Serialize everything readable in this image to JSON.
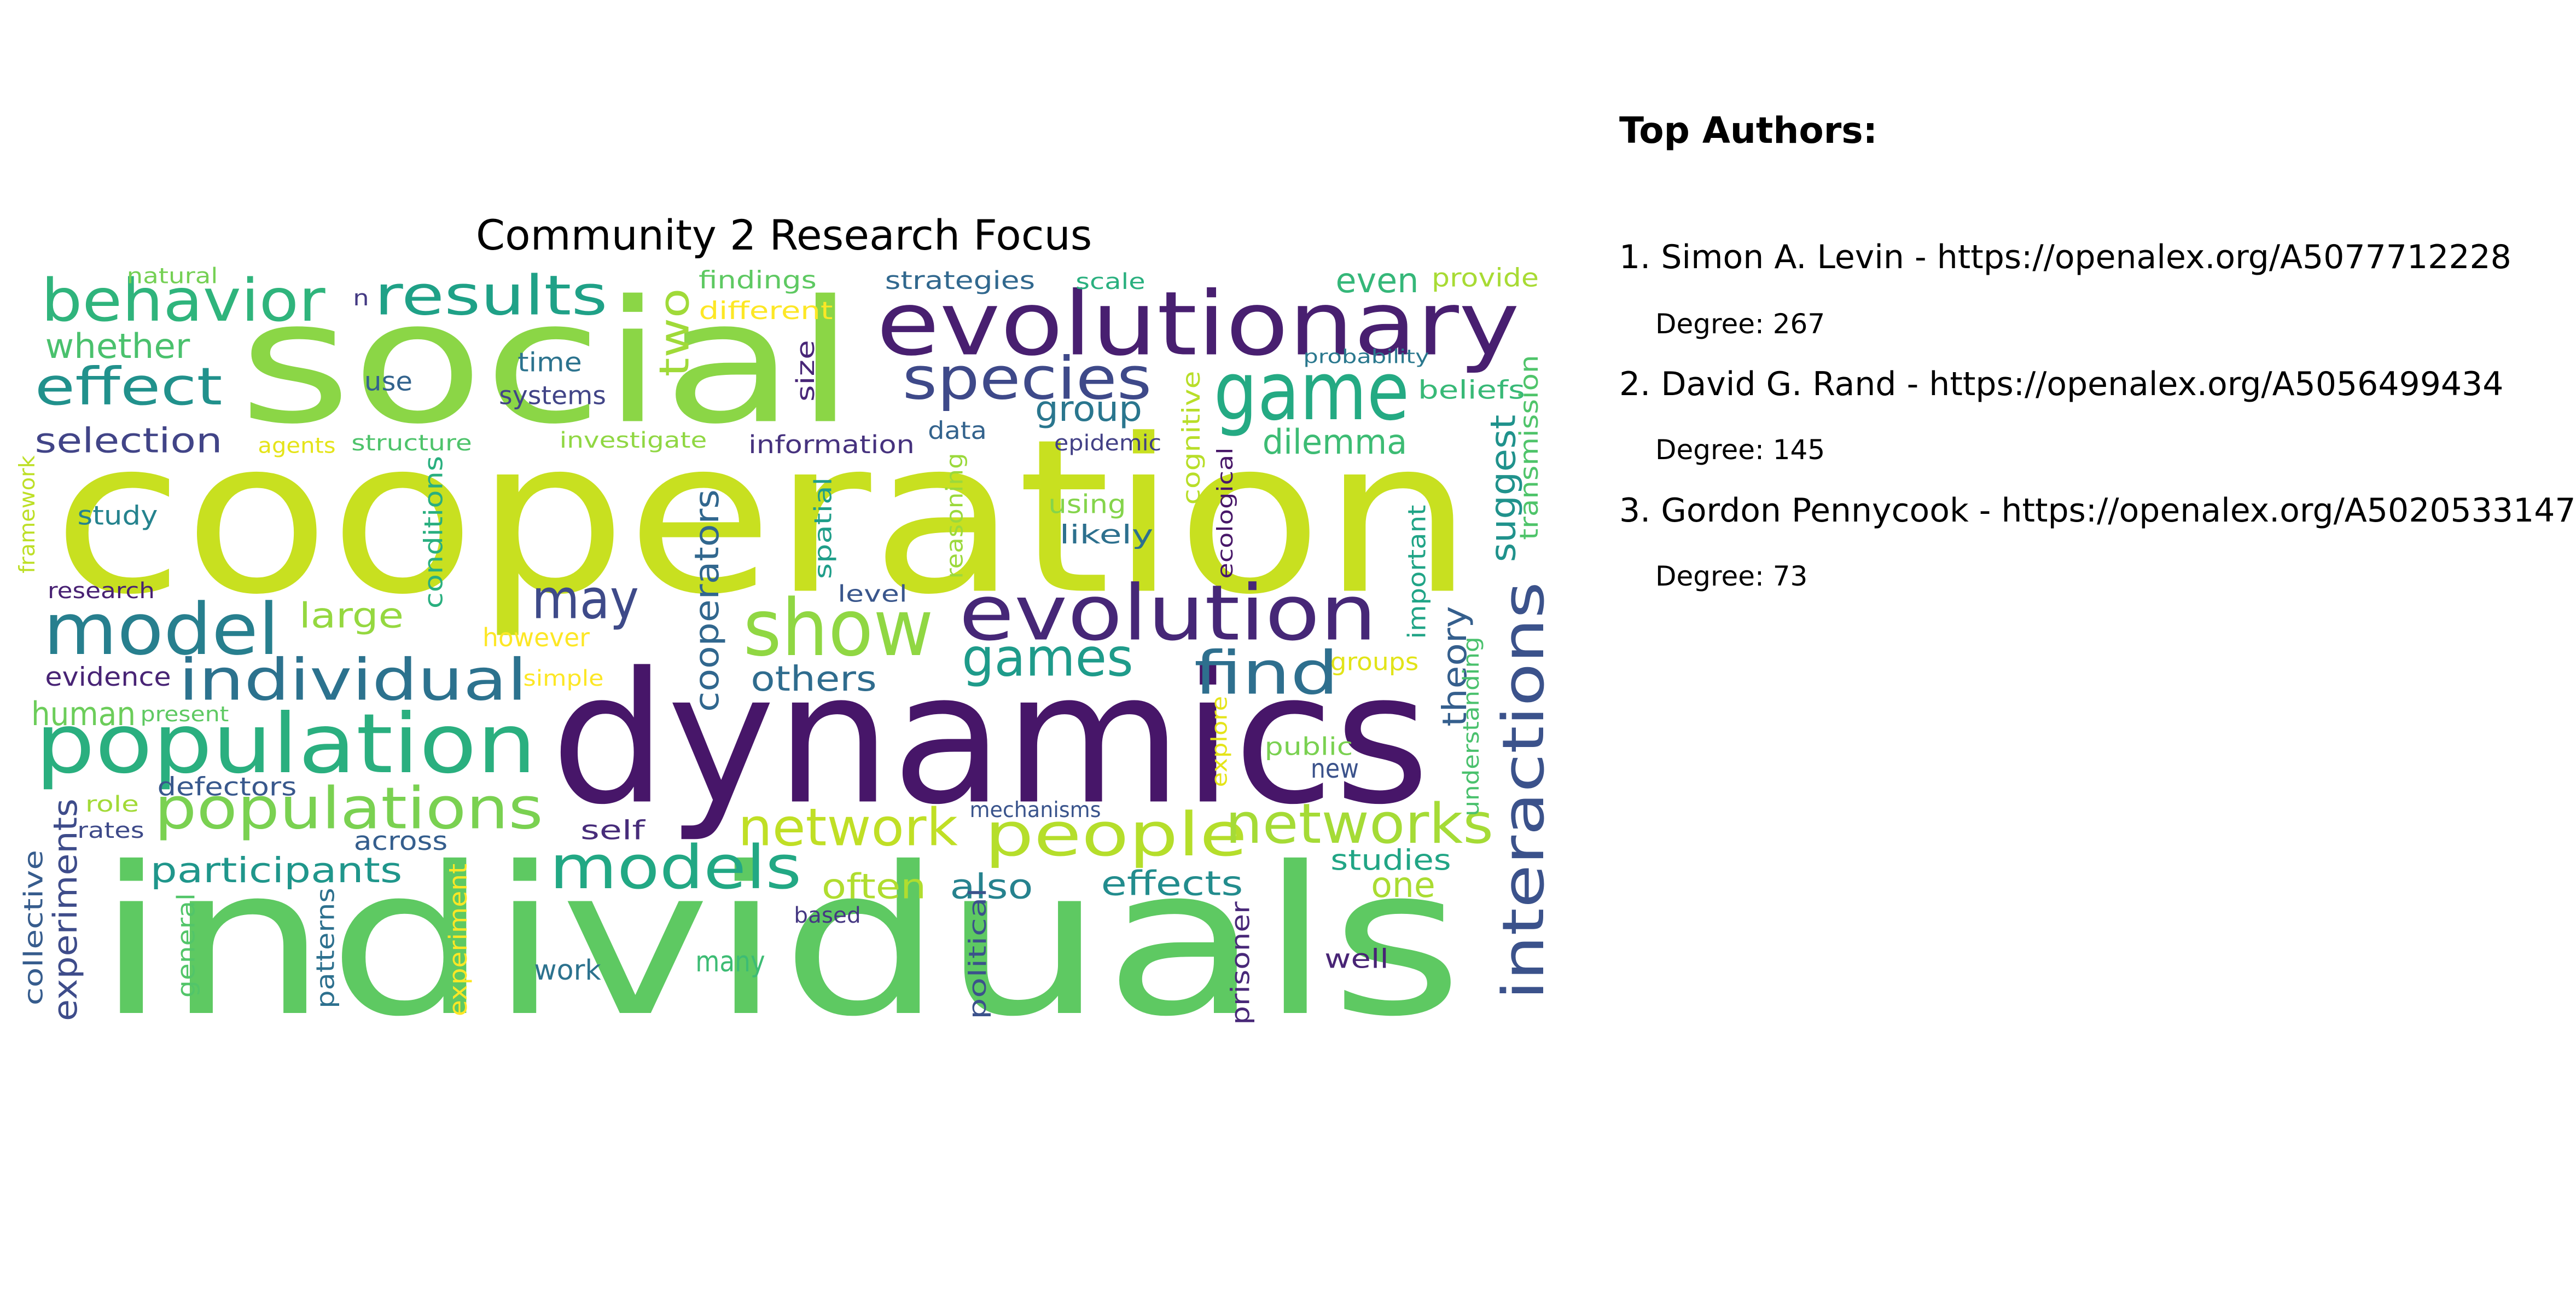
{
  "wordcloud": {
    "title": "Community 2 Research Focus",
    "words": [
      {
        "text": "cooperation",
        "color": "#c8e020"
      },
      {
        "text": "dynamics",
        "color": "#471669"
      },
      {
        "text": "individuals",
        "color": "#5ec962"
      },
      {
        "text": "social",
        "color": "#8bd646"
      },
      {
        "text": "evolutionary",
        "color": "#481f70"
      },
      {
        "text": "game",
        "color": "#24aa83"
      },
      {
        "text": "evolution",
        "color": "#462777"
      },
      {
        "text": "show",
        "color": "#90d743"
      },
      {
        "text": "population",
        "color": "#2aaf7f"
      },
      {
        "text": "model",
        "color": "#277f8e"
      },
      {
        "text": "individual",
        "color": "#2c728e"
      },
      {
        "text": "populations",
        "color": "#7ad151"
      },
      {
        "text": "interactions",
        "color": "#3b528b"
      },
      {
        "text": "behavior",
        "color": "#2fb47c"
      },
      {
        "text": "results",
        "color": "#1fa187"
      },
      {
        "text": "species",
        "color": "#3e4989"
      },
      {
        "text": "people",
        "color": "#b5de2b"
      },
      {
        "text": "networks",
        "color": "#a5db36"
      },
      {
        "text": "network",
        "color": "#c0df25"
      },
      {
        "text": "models",
        "color": "#22a884"
      },
      {
        "text": "find",
        "color": "#2e6f8e"
      },
      {
        "text": "games",
        "color": "#1e9b8a"
      },
      {
        "text": "effect",
        "color": "#21918c"
      },
      {
        "text": "may",
        "color": "#3e4a89"
      },
      {
        "text": "two",
        "color": "#a0da39"
      },
      {
        "text": "even",
        "color": "#35b779"
      },
      {
        "text": "whether",
        "color": "#4ac16d"
      },
      {
        "text": "selection",
        "color": "#414487"
      },
      {
        "text": "large",
        "color": "#95d840"
      },
      {
        "text": "participants",
        "color": "#1f968b"
      },
      {
        "text": "suggest",
        "color": "#20928c"
      },
      {
        "text": "cooperators",
        "color": "#31678e"
      },
      {
        "text": "dilemma",
        "color": "#3dbc74"
      },
      {
        "text": "group",
        "color": "#2a768e"
      },
      {
        "text": "often",
        "color": "#b0dd2f"
      },
      {
        "text": "also",
        "color": "#26828e"
      },
      {
        "text": "effects",
        "color": "#228c8d"
      },
      {
        "text": "theory",
        "color": "#355f8d"
      },
      {
        "text": "others",
        "color": "#2f6c8e"
      },
      {
        "text": "human",
        "color": "#6ccd5a"
      },
      {
        "text": "one",
        "color": "#aadc32"
      },
      {
        "text": "experiments",
        "color": "#3e4c8a"
      },
      {
        "text": "defectors",
        "color": "#38588c"
      },
      {
        "text": "across",
        "color": "#355e8d"
      },
      {
        "text": "self",
        "color": "#472c7a"
      },
      {
        "text": "evidence",
        "color": "#482475"
      },
      {
        "text": "collective",
        "color": "#365c8d"
      },
      {
        "text": "study",
        "color": "#25838e"
      },
      {
        "text": "conditions",
        "color": "#29af7f"
      },
      {
        "text": "information",
        "color": "#46327e"
      },
      {
        "text": "studies",
        "color": "#21a585"
      },
      {
        "text": "systems",
        "color": "#414487"
      },
      {
        "text": "time",
        "color": "#2c738e"
      },
      {
        "text": "use",
        "color": "#33638d"
      },
      {
        "text": "findings",
        "color": "#5ec962"
      },
      {
        "text": "strategies",
        "color": "#31688e"
      },
      {
        "text": "different",
        "color": "#fde725"
      },
      {
        "text": "provide",
        "color": "#a8db34"
      },
      {
        "text": "beliefs",
        "color": "#38b977"
      },
      {
        "text": "transmission",
        "color": "#4fc46a"
      },
      {
        "text": "size",
        "color": "#482677"
      },
      {
        "text": "data",
        "color": "#33638d"
      },
      {
        "text": "cognitive",
        "color": "#b8de29"
      },
      {
        "text": "spatial",
        "color": "#1f9e89"
      },
      {
        "text": "reasoning",
        "color": "#9bd93c"
      },
      {
        "text": "using",
        "color": "#84d44b"
      },
      {
        "text": "likely",
        "color": "#2d708e"
      },
      {
        "text": "level",
        "color": "#39568c"
      },
      {
        "text": "however",
        "color": "#fde725"
      },
      {
        "text": "important",
        "color": "#20a486"
      },
      {
        "text": "groups",
        "color": "#e2e418"
      },
      {
        "text": "public",
        "color": "#7ad151"
      },
      {
        "text": "new",
        "color": "#3b528b"
      },
      {
        "text": "mechanisms",
        "color": "#3a548c"
      },
      {
        "text": "based",
        "color": "#453882"
      },
      {
        "text": "political",
        "color": "#3b528b"
      },
      {
        "text": "prisoner",
        "color": "#482878"
      },
      {
        "text": "well",
        "color": "#482475"
      },
      {
        "text": "many",
        "color": "#3dbc74"
      },
      {
        "text": "work",
        "color": "#2c728e"
      },
      {
        "text": "experiment",
        "color": "#fde725"
      },
      {
        "text": "patterns",
        "color": "#2d708e"
      },
      {
        "text": "general",
        "color": "#52c569"
      },
      {
        "text": "rates",
        "color": "#3e4a89"
      },
      {
        "text": "role",
        "color": "#a2da37"
      },
      {
        "text": "present",
        "color": "#5ec962"
      },
      {
        "text": "simple",
        "color": "#fde725"
      },
      {
        "text": "research",
        "color": "#482173"
      },
      {
        "text": "framework",
        "color": "#bddf26"
      },
      {
        "text": "natural",
        "color": "#75d054"
      },
      {
        "text": "n",
        "color": "#443a83"
      },
      {
        "text": "scale",
        "color": "#2ab07f"
      },
      {
        "text": "probability",
        "color": "#2a788e"
      },
      {
        "text": "agents",
        "color": "#e5e419"
      },
      {
        "text": "structure",
        "color": "#4ec36b"
      },
      {
        "text": "investigate",
        "color": "#90d743"
      },
      {
        "text": "epidemic",
        "color": "#424086"
      },
      {
        "text": "ecological",
        "color": "#481769"
      },
      {
        "text": "understanding",
        "color": "#4ac16d"
      },
      {
        "text": "explore",
        "color": "#e5e419"
      }
    ]
  },
  "top_authors": {
    "heading": "Top Authors:",
    "authors": [
      {
        "line": "1. Simon A. Levin - https://openalex.org/A5077712228",
        "degree": "Degree: 267"
      },
      {
        "line": "2. David G. Rand - https://openalex.org/A5056499434",
        "degree": "Degree: 145"
      },
      {
        "line": "3. Gordon Pennycook - https://openalex.org/A5020533147",
        "degree": "Degree: 73"
      }
    ]
  }
}
